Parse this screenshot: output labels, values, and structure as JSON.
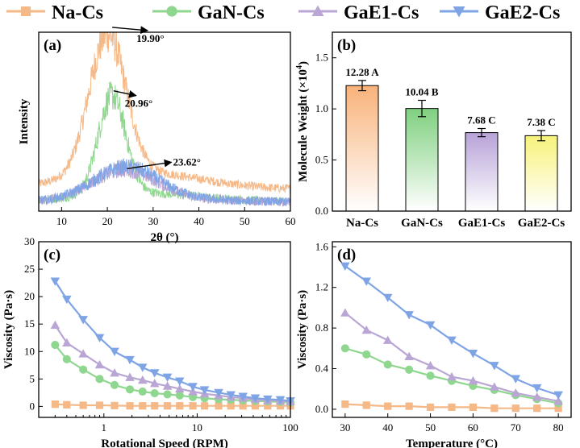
{
  "legend": {
    "entries": [
      {
        "name": "Na-Cs",
        "color": "#f5b887",
        "marker": "square"
      },
      {
        "name": "GaN-Cs",
        "color": "#8fd68f",
        "marker": "circle"
      },
      {
        "name": "GaE1-Cs",
        "color": "#b9a6d4",
        "marker": "triangle-up"
      },
      {
        "name": "GaE2-Cs",
        "color": "#7ea4e6",
        "marker": "triangle-down"
      }
    ]
  },
  "chart_data": [
    {
      "id": "a",
      "panel_label": "(a)",
      "type": "line",
      "title": "",
      "xlabel": "2θ (°)",
      "ylabel": "Intensity",
      "xlim": [
        5,
        60
      ],
      "ylim": [
        0,
        1
      ],
      "xticks": [
        10,
        20,
        30,
        40,
        50,
        60
      ],
      "yticks_shown": false,
      "annotations": [
        {
          "text": "19.90°",
          "x": 20.0,
          "series": "Na-Cs"
        },
        {
          "text": "20.96°",
          "x": 21.0,
          "series": "GaN-Cs"
        },
        {
          "text": "23.62°",
          "x": 23.6,
          "series": "GaE1-Cs"
        }
      ],
      "series": [
        {
          "name": "Na-Cs",
          "color": "#f5b887",
          "base": 0.12,
          "peak_x": 20.0,
          "peak_h": 0.78,
          "width": 4.0,
          "tail": 0.1
        },
        {
          "name": "GaN-Cs",
          "color": "#8fd68f",
          "base": 0.05,
          "peak_x": 21.0,
          "peak_h": 0.55,
          "width": 3.0,
          "tail": 0.05
        },
        {
          "name": "GaE1-Cs",
          "color": "#b9a6d4",
          "base": 0.05,
          "peak_x": 23.6,
          "peak_h": 0.16,
          "width": 7.0,
          "tail": 0.02
        },
        {
          "name": "GaE2-Cs",
          "color": "#7ea4e6",
          "base": 0.05,
          "peak_x": 24.0,
          "peak_h": 0.18,
          "width": 7.0,
          "tail": 0.02
        }
      ]
    },
    {
      "id": "b",
      "panel_label": "(b)",
      "type": "bar",
      "title": "",
      "xlabel": "",
      "ylabel": "Molecule Weight (×10",
      "ylabel_sup": "4",
      "ylabel_end": ")",
      "categories": [
        "Na-Cs",
        "GaN-Cs",
        "GaE1-Cs",
        "GaE2-Cs"
      ],
      "values": [
        1.228,
        1.004,
        0.768,
        0.738
      ],
      "errors": [
        0.05,
        0.08,
        0.04,
        0.05
      ],
      "labels": [
        "12.28 A",
        "10.04 B",
        "7.68 C",
        "7.38 C"
      ],
      "colors": [
        "#f8b27a",
        "#7fd07f",
        "#b7a2d8",
        "#f7f27a"
      ],
      "ylim": [
        0,
        1.75
      ],
      "yticks": [
        "0.0",
        "0.5",
        "1.0",
        "1.5"
      ]
    },
    {
      "id": "c",
      "panel_label": "(c)",
      "type": "line",
      "title": "",
      "xlabel": "Rotational Speed (RPM)",
      "ylabel": "Viscosity (Pa·s)",
      "xscale": "log",
      "xlim": [
        0.2,
        100
      ],
      "ylim": [
        -2,
        30
      ],
      "xticks": [
        "1",
        "10",
        "100"
      ],
      "yticks": [
        "0",
        "5",
        "10",
        "15",
        "20",
        "25",
        "30"
      ],
      "x": [
        0.3,
        0.4,
        0.6,
        0.9,
        1.3,
        1.9,
        2.6,
        3.5,
        4.8,
        6.5,
        9,
        12,
        17,
        23,
        31,
        42,
        57,
        78,
        100
      ],
      "series": [
        {
          "name": "Na-Cs",
          "color": "#f5b887",
          "marker": "square",
          "values": [
            0.4,
            0.3,
            0.2,
            0.2,
            0.15,
            0.1,
            0.1,
            0.1,
            0.1,
            0.1,
            0.1,
            0.1,
            0.1,
            0.1,
            0.1,
            0.1,
            0.1,
            0.1,
            0.1
          ]
        },
        {
          "name": "GaN-Cs",
          "color": "#8fd68f",
          "marker": "circle",
          "values": [
            11.2,
            8.6,
            6.7,
            5.0,
            3.9,
            3.1,
            2.7,
            2.4,
            2.2,
            2.0,
            1.7,
            1.5,
            1.3,
            1.2,
            1.1,
            1.0,
            0.9,
            0.8,
            0.7
          ]
        },
        {
          "name": "GaE1-Cs",
          "color": "#b9a6d4",
          "marker": "triangle-up",
          "values": [
            14.8,
            11.6,
            9.6,
            7.6,
            6.1,
            5.3,
            4.8,
            4.2,
            3.7,
            3.2,
            2.7,
            2.3,
            2.0,
            1.7,
            1.5,
            1.3,
            1.1,
            1.0,
            0.9
          ]
        },
        {
          "name": "GaE2-Cs",
          "color": "#7ea4e6",
          "marker": "triangle-down",
          "values": [
            22.8,
            19.5,
            15.8,
            12.5,
            10.0,
            8.5,
            7.1,
            6.1,
            5.3,
            4.6,
            3.6,
            3.0,
            2.5,
            2.1,
            1.8,
            1.5,
            1.3,
            1.2,
            1.0
          ]
        }
      ]
    },
    {
      "id": "d",
      "panel_label": "(d)",
      "type": "line",
      "title": "",
      "xlabel": "Temperature (°C)",
      "ylabel": "Viscosity (Pa·s)",
      "xlim": [
        27,
        83
      ],
      "ylim": [
        -0.08,
        1.65
      ],
      "xticks": [
        "30",
        "40",
        "50",
        "60",
        "70",
        "80"
      ],
      "yticks": [
        "0.0",
        "0.4",
        "0.8",
        "1.2",
        "1.6"
      ],
      "x": [
        30,
        35,
        40,
        45,
        50,
        55,
        60,
        65,
        70,
        75,
        80
      ],
      "series": [
        {
          "name": "Na-Cs",
          "color": "#f5b887",
          "marker": "square",
          "values": [
            0.05,
            0.04,
            0.03,
            0.03,
            0.02,
            0.02,
            0.02,
            0.01,
            0.01,
            0.01,
            0.01
          ]
        },
        {
          "name": "GaN-Cs",
          "color": "#8fd68f",
          "marker": "circle",
          "values": [
            0.6,
            0.54,
            0.44,
            0.39,
            0.33,
            0.28,
            0.23,
            0.19,
            0.14,
            0.1,
            0.06
          ]
        },
        {
          "name": "GaE1-Cs",
          "color": "#b9a6d4",
          "marker": "triangle-up",
          "values": [
            0.95,
            0.78,
            0.68,
            0.52,
            0.43,
            0.32,
            0.28,
            0.22,
            0.16,
            0.12,
            0.08
          ]
        },
        {
          "name": "GaE2-Cs",
          "color": "#7ea4e6",
          "marker": "triangle-down",
          "values": [
            1.41,
            1.26,
            1.1,
            0.93,
            0.83,
            0.68,
            0.55,
            0.43,
            0.3,
            0.21,
            0.14
          ]
        }
      ]
    }
  ]
}
